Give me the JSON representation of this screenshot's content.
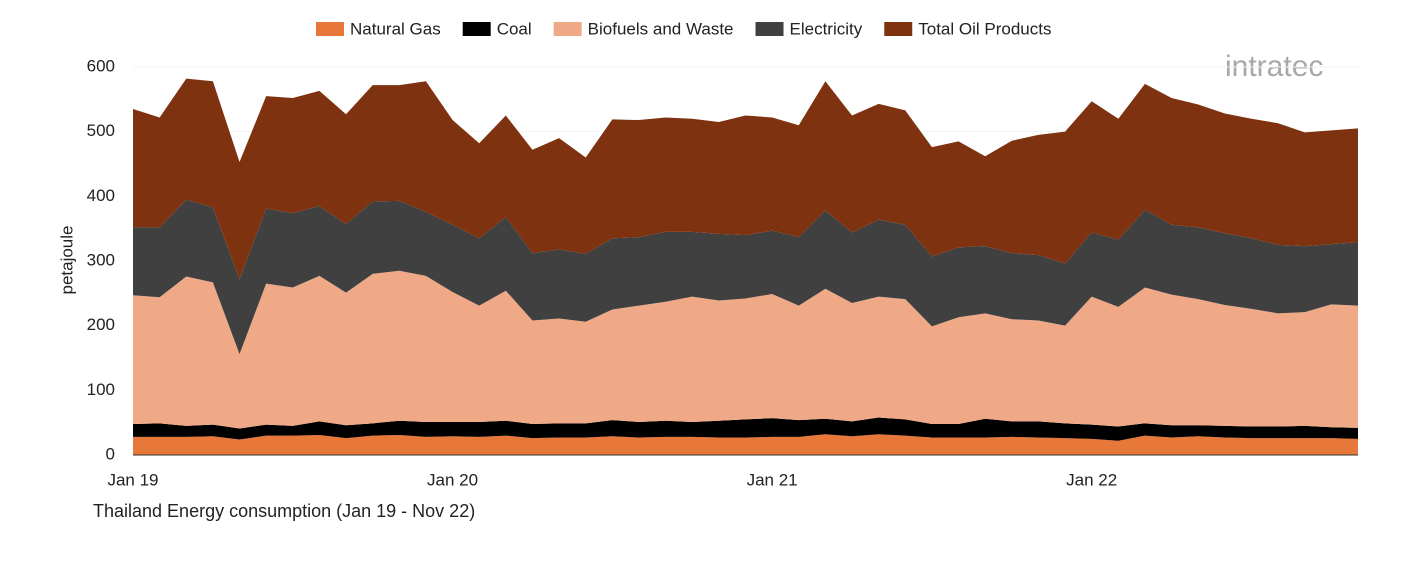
{
  "logo": "intratec",
  "chart_data": {
    "type": "stacked-area",
    "title": "Thailand Energy consumption (Jan 19 - Nov 22)",
    "y_label": "petajoule",
    "categories": [
      "Jan 19",
      null,
      null,
      null,
      null,
      null,
      null,
      null,
      null,
      null,
      null,
      null,
      "Jan 20",
      null,
      null,
      null,
      null,
      null,
      null,
      null,
      null,
      null,
      null,
      null,
      "Jan 21",
      null,
      null,
      null,
      null,
      null,
      null,
      null,
      null,
      null,
      null,
      null,
      "Jan 22",
      null,
      null,
      null,
      null,
      null,
      null,
      null,
      null,
      null,
      null
    ],
    "ylim": [
      0,
      600
    ],
    "yticks": [
      0,
      100,
      200,
      300,
      400,
      500,
      600
    ],
    "grid": true,
    "legend": "top",
    "series": [
      {
        "name": "Natural Gas",
        "color": "#e8773a",
        "values": [
          28,
          28,
          28,
          29,
          24,
          30,
          30,
          31,
          26,
          30,
          31,
          28,
          29,
          28,
          30,
          26,
          27,
          27,
          29,
          27,
          28,
          28,
          27,
          27,
          28,
          28,
          32,
          29,
          32,
          30,
          27,
          27,
          27,
          28,
          27,
          26,
          25,
          22,
          30,
          27,
          29,
          27,
          26,
          26,
          26,
          26,
          25
        ]
      },
      {
        "name": "Coal",
        "color": "#000000",
        "values": [
          20,
          21,
          17,
          18,
          17,
          17,
          15,
          21,
          20,
          19,
          22,
          23,
          22,
          23,
          23,
          22,
          22,
          22,
          25,
          24,
          25,
          23,
          26,
          28,
          29,
          26,
          24,
          23,
          26,
          25,
          21,
          21,
          29,
          24,
          25,
          23,
          22,
          22,
          19,
          19,
          17,
          18,
          18,
          18,
          19,
          17,
          17
        ]
      },
      {
        "name": "Biofuels and Waste",
        "color": "#f0a987",
        "values": [
          199,
          195,
          231,
          220,
          115,
          218,
          214,
          225,
          205,
          231,
          232,
          226,
          201,
          180,
          201,
          160,
          162,
          157,
          171,
          180,
          184,
          194,
          186,
          187,
          192,
          177,
          201,
          183,
          187,
          186,
          151,
          165,
          163,
          158,
          156,
          151,
          198,
          185,
          210,
          202,
          195,
          187,
          182,
          175,
          176,
          190,
          189
        ]
      },
      {
        "name": "Electricity",
        "color": "#404040",
        "values": [
          105,
          108,
          119,
          116,
          116,
          116,
          115,
          108,
          106,
          112,
          108,
          99,
          104,
          104,
          114,
          104,
          107,
          105,
          110,
          106,
          108,
          100,
          103,
          98,
          98,
          106,
          121,
          109,
          119,
          115,
          108,
          108,
          104,
          102,
          101,
          96,
          99,
          104,
          120,
          108,
          111,
          111,
          109,
          106,
          102,
          93,
          98
        ]
      },
      {
        "name": "Total Oil Products",
        "color": "#7f3210",
        "values": [
          183,
          170,
          187,
          195,
          181,
          174,
          178,
          178,
          170,
          180,
          179,
          202,
          162,
          147,
          157,
          160,
          172,
          149,
          184,
          181,
          177,
          175,
          173,
          185,
          175,
          173,
          200,
          181,
          179,
          177,
          169,
          164,
          139,
          174,
          186,
          204,
          203,
          187,
          195,
          196,
          190,
          185,
          185,
          188,
          176,
          176,
          176
        ]
      }
    ]
  }
}
